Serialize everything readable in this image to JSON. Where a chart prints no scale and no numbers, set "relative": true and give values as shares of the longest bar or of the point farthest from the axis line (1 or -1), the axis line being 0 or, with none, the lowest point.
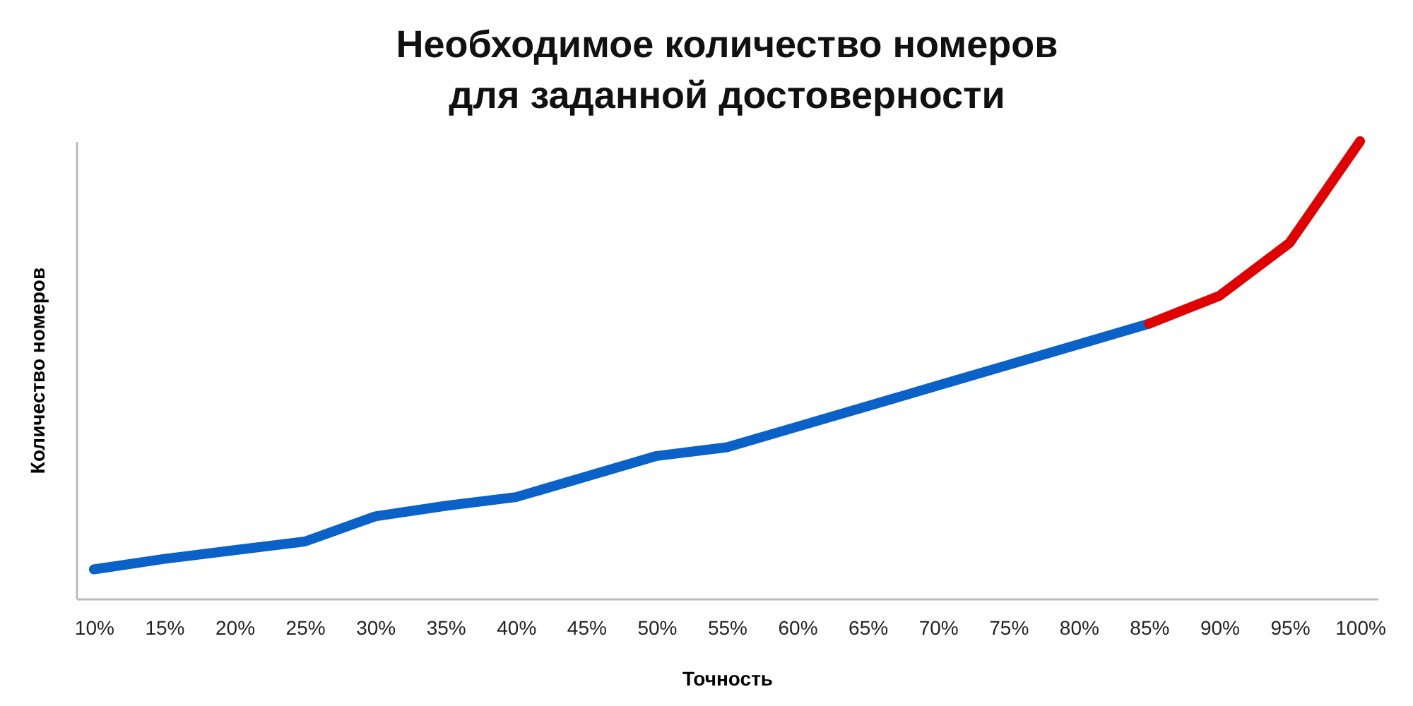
{
  "chart_data": {
    "type": "line",
    "title": "Необходимое количество номеров\nдля заданной достоверности",
    "xlabel": "Точность",
    "ylabel": "Количество номеров",
    "relative": true,
    "categories": [
      "10%",
      "15%",
      "20%",
      "25%",
      "30%",
      "35%",
      "40%",
      "45%",
      "50%",
      "55%",
      "60%",
      "65%",
      "70%",
      "75%",
      "80%",
      "85%",
      "90%",
      "95%",
      "100%"
    ],
    "series": [
      {
        "color": "#0a62c8",
        "values": [
          0.064,
          0.087,
          0.106,
          0.125,
          0.18,
          0.203,
          0.222,
          0.267,
          0.312,
          0.331,
          0.376,
          0.421,
          0.466,
          0.511,
          0.556,
          0.601,
          null,
          null,
          null
        ]
      },
      {
        "color": "#e00000",
        "values": [
          null,
          null,
          null,
          null,
          null,
          null,
          null,
          null,
          null,
          null,
          null,
          null,
          null,
          null,
          null,
          0.601,
          0.662,
          0.778,
          1
        ]
      }
    ]
  }
}
